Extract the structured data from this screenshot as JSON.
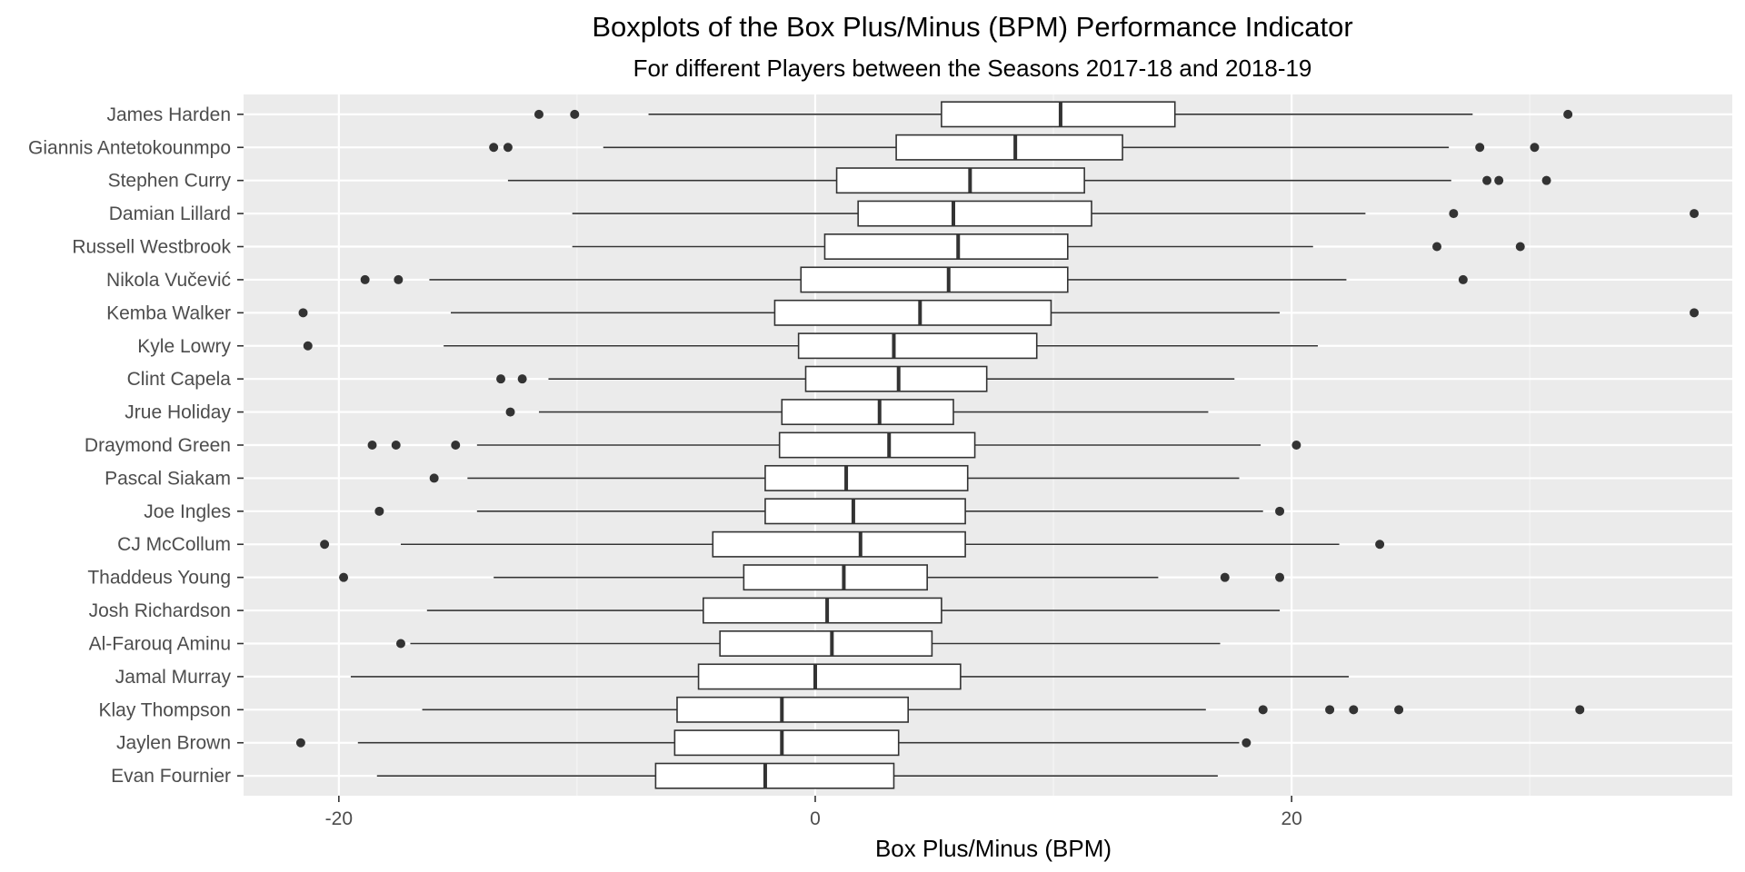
{
  "chart_data": {
    "type": "boxplot",
    "title": "Boxplots of the Box Plus/Minus (BPM) Performance Indicator",
    "subtitle": "For different Players between the Seasons 2017-18 and 2018-19",
    "xlabel": "Box Plus/Minus (BPM)",
    "ylabel": "",
    "xlim": [
      -24,
      38.5
    ],
    "xticks": [
      -20,
      0,
      20
    ],
    "xtick_labels": [
      "-20",
      "0",
      "20"
    ],
    "grid": true,
    "orientation": "horizontal",
    "series": [
      {
        "name": "James Harden",
        "whisker_low": -7,
        "q1": 5.3,
        "median": 10.3,
        "q3": 15.1,
        "whisker_high": 27.6,
        "outliers": [
          -11.6,
          -10.1,
          31.6
        ]
      },
      {
        "name": "Giannis Antetokounmpo",
        "whisker_low": -8.9,
        "q1": 3.4,
        "median": 8.4,
        "q3": 12.9,
        "whisker_high": 26.6,
        "outliers": [
          -13.5,
          -12.9,
          27.9,
          30.2
        ]
      },
      {
        "name": "Stephen Curry",
        "whisker_low": -12.9,
        "q1": 0.9,
        "median": 6.5,
        "q3": 11.3,
        "whisker_high": 26.7,
        "outliers": [
          28.2,
          28.7,
          30.7
        ]
      },
      {
        "name": "Damian Lillard",
        "whisker_low": -10.2,
        "q1": 1.8,
        "median": 5.8,
        "q3": 11.6,
        "whisker_high": 23.1,
        "outliers": [
          26.8,
          36.9
        ]
      },
      {
        "name": "Russell Westbrook",
        "whisker_low": -10.2,
        "q1": 0.4,
        "median": 6,
        "q3": 10.6,
        "whisker_high": 20.9,
        "outliers": [
          26.1,
          29.6
        ]
      },
      {
        "name": "Nikola Vučević",
        "whisker_low": -16.2,
        "q1": -0.6,
        "median": 5.6,
        "q3": 10.6,
        "whisker_high": 22.3,
        "outliers": [
          -18.9,
          -17.5,
          27.2
        ]
      },
      {
        "name": "Kemba Walker",
        "whisker_low": -15.3,
        "q1": -1.7,
        "median": 4.4,
        "q3": 9.9,
        "whisker_high": 19.5,
        "outliers": [
          -21.5,
          36.9
        ]
      },
      {
        "name": "Kyle Lowry",
        "whisker_low": -15.6,
        "q1": -0.7,
        "median": 3.3,
        "q3": 9.3,
        "whisker_high": 21.1,
        "outliers": [
          -21.3
        ]
      },
      {
        "name": "Clint Capela",
        "whisker_low": -11.2,
        "q1": -0.4,
        "median": 3.5,
        "q3": 7.2,
        "whisker_high": 17.6,
        "outliers": [
          -13.2,
          -12.3
        ]
      },
      {
        "name": "Jrue Holiday",
        "whisker_low": -11.6,
        "q1": -1.4,
        "median": 2.7,
        "q3": 5.8,
        "whisker_high": 16.5,
        "outliers": [
          -12.8
        ]
      },
      {
        "name": "Draymond Green",
        "whisker_low": -14.2,
        "q1": -1.5,
        "median": 3.1,
        "q3": 6.7,
        "whisker_high": 18.7,
        "outliers": [
          -18.6,
          -17.6,
          -15.1,
          20.2
        ]
      },
      {
        "name": "Pascal Siakam",
        "whisker_low": -14.6,
        "q1": -2.1,
        "median": 1.3,
        "q3": 6.4,
        "whisker_high": 17.8,
        "outliers": [
          -16
        ]
      },
      {
        "name": "Joe Ingles",
        "whisker_low": -14.2,
        "q1": -2.1,
        "median": 1.6,
        "q3": 6.3,
        "whisker_high": 18.8,
        "outliers": [
          -18.3,
          19.5
        ]
      },
      {
        "name": "CJ McCollum",
        "whisker_low": -17.4,
        "q1": -4.3,
        "median": 1.9,
        "q3": 6.3,
        "whisker_high": 22,
        "outliers": [
          -20.6,
          23.7
        ]
      },
      {
        "name": "Thaddeus Young",
        "whisker_low": -13.5,
        "q1": -3,
        "median": 1.2,
        "q3": 4.7,
        "whisker_high": 14.4,
        "outliers": [
          -19.8,
          17.2,
          19.5
        ]
      },
      {
        "name": "Josh Richardson",
        "whisker_low": -16.3,
        "q1": -4.7,
        "median": 0.5,
        "q3": 5.3,
        "whisker_high": 19.5,
        "outliers": []
      },
      {
        "name": "Al-Farouq Aminu",
        "whisker_low": -17,
        "q1": -4,
        "median": 0.7,
        "q3": 4.9,
        "whisker_high": 17,
        "outliers": [
          -17.4
        ]
      },
      {
        "name": "Jamal Murray",
        "whisker_low": -19.5,
        "q1": -4.9,
        "median": 0,
        "q3": 6.1,
        "whisker_high": 22.4,
        "outliers": []
      },
      {
        "name": "Klay Thompson",
        "whisker_low": -16.5,
        "q1": -5.8,
        "median": -1.4,
        "q3": 3.9,
        "whisker_high": 16.4,
        "outliers": [
          18.8,
          21.6,
          22.6,
          24.5,
          32.1
        ]
      },
      {
        "name": "Jaylen Brown",
        "whisker_low": -19.2,
        "q1": -5.9,
        "median": -1.4,
        "q3": 3.5,
        "whisker_high": 17.8,
        "outliers": [
          -21.6,
          18.1
        ]
      },
      {
        "name": "Evan Fournier",
        "whisker_low": -18.4,
        "q1": -6.7,
        "median": -2.1,
        "q3": 3.3,
        "whisker_high": 16.9,
        "outliers": []
      }
    ]
  },
  "colors": {
    "panel_background": "#ebebeb",
    "grid_major": "#ffffff",
    "grid_minor": "#f5f5f5",
    "box_fill": "#ffffff",
    "box_stroke": "#333333",
    "outlier": "#333333",
    "tick_text": "#4d4d4d"
  }
}
